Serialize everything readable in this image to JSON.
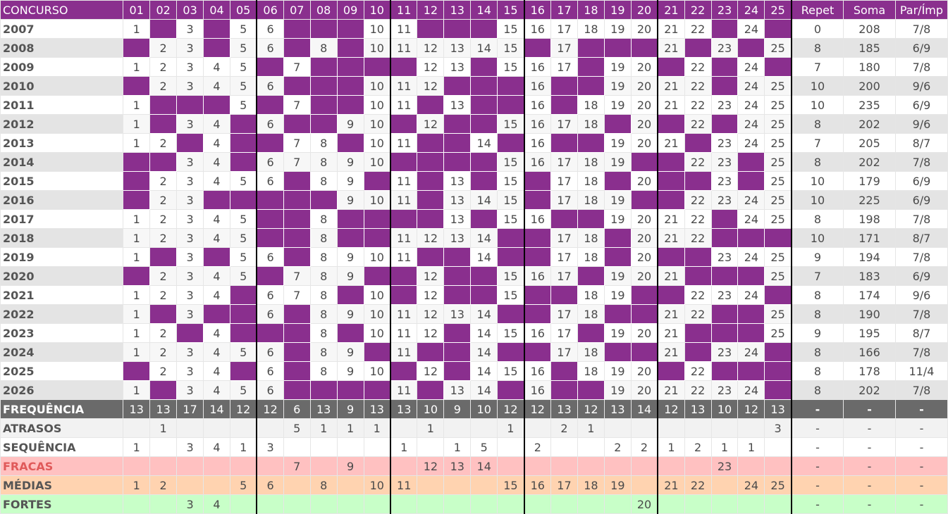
{
  "colors": {
    "header": "#8a2f8e",
    "cell_off": "#8a2f8e",
    "freq_bg": "#6a6a6a",
    "fracas_bg": "#ffc1c1",
    "medias_bg": "#ffd3b0",
    "fortes_bg": "#c8ffc8"
  },
  "header": {
    "concurso": "CONCURSO",
    "numbers": [
      "01",
      "02",
      "03",
      "04",
      "05",
      "06",
      "07",
      "08",
      "09",
      "10",
      "11",
      "12",
      "13",
      "14",
      "15",
      "16",
      "17",
      "18",
      "19",
      "20",
      "21",
      "22",
      "23",
      "24",
      "25"
    ],
    "repet": "Repet",
    "soma": "Soma",
    "parimp": "Par/Ímp"
  },
  "rows": [
    {
      "concurso": "2007",
      "cells": [
        "1",
        "",
        "3",
        "",
        "5",
        "6",
        "",
        "",
        "",
        "10",
        "11",
        "",
        "",
        "",
        "15",
        "16",
        "17",
        "18",
        "19",
        "20",
        "21",
        "22",
        "",
        "24",
        ""
      ],
      "repet": "0",
      "soma": "208",
      "parimp": "7/8"
    },
    {
      "concurso": "2008",
      "cells": [
        "",
        "2",
        "3",
        "",
        "5",
        "6",
        "",
        "8",
        "",
        "10",
        "11",
        "12",
        "13",
        "14",
        "15",
        "",
        "17",
        "",
        "",
        "",
        "21",
        "",
        "23",
        "",
        "25"
      ],
      "repet": "8",
      "soma": "185",
      "parimp": "6/9"
    },
    {
      "concurso": "2009",
      "cells": [
        "1",
        "2",
        "3",
        "4",
        "5",
        "",
        "7",
        "",
        "",
        "",
        "",
        "12",
        "13",
        "",
        "15",
        "16",
        "17",
        "",
        "19",
        "20",
        "",
        "22",
        "",
        "24",
        ""
      ],
      "repet": "7",
      "soma": "180",
      "parimp": "7/8"
    },
    {
      "concurso": "2010",
      "cells": [
        "",
        "2",
        "3",
        "4",
        "5",
        "6",
        "",
        "",
        "",
        "10",
        "11",
        "12",
        "",
        "",
        "",
        "16",
        "",
        "",
        "19",
        "20",
        "21",
        "22",
        "",
        "24",
        "25"
      ],
      "repet": "10",
      "soma": "200",
      "parimp": "9/6"
    },
    {
      "concurso": "2011",
      "cells": [
        "1",
        "",
        "",
        "",
        "5",
        "",
        "7",
        "",
        "",
        "10",
        "11",
        "",
        "13",
        "",
        "",
        "16",
        "",
        "18",
        "19",
        "20",
        "21",
        "22",
        "23",
        "24",
        "25"
      ],
      "repet": "10",
      "soma": "235",
      "parimp": "6/9"
    },
    {
      "concurso": "2012",
      "cells": [
        "1",
        "",
        "3",
        "4",
        "",
        "6",
        "",
        "",
        "9",
        "10",
        "",
        "12",
        "",
        "",
        "15",
        "16",
        "17",
        "18",
        "",
        "20",
        "",
        "22",
        "",
        "24",
        "25"
      ],
      "repet": "8",
      "soma": "202",
      "parimp": "9/6"
    },
    {
      "concurso": "2013",
      "cells": [
        "1",
        "2",
        "",
        "4",
        "",
        "",
        "7",
        "8",
        "",
        "10",
        "11",
        "",
        "",
        "14",
        "",
        "16",
        "",
        "",
        "19",
        "20",
        "21",
        "",
        "23",
        "24",
        "25"
      ],
      "repet": "7",
      "soma": "205",
      "parimp": "8/7"
    },
    {
      "concurso": "2014",
      "cells": [
        "",
        "",
        "3",
        "4",
        "",
        "6",
        "7",
        "8",
        "9",
        "10",
        "",
        "",
        "",
        "",
        "15",
        "16",
        "17",
        "18",
        "19",
        "",
        "",
        "22",
        "23",
        "",
        "25"
      ],
      "repet": "8",
      "soma": "202",
      "parimp": "7/8"
    },
    {
      "concurso": "2015",
      "cells": [
        "",
        "2",
        "3",
        "4",
        "5",
        "6",
        "",
        "8",
        "9",
        "",
        "11",
        "",
        "13",
        "",
        "15",
        "",
        "17",
        "18",
        "",
        "20",
        "",
        "",
        "23",
        "",
        "25"
      ],
      "repet": "10",
      "soma": "179",
      "parimp": "6/9"
    },
    {
      "concurso": "2016",
      "cells": [
        "",
        "2",
        "3",
        "",
        "",
        "",
        "",
        "",
        "9",
        "10",
        "11",
        "",
        "13",
        "14",
        "15",
        "",
        "17",
        "18",
        "19",
        "",
        "",
        "22",
        "23",
        "24",
        "25"
      ],
      "repet": "10",
      "soma": "225",
      "parimp": "6/9"
    },
    {
      "concurso": "2017",
      "cells": [
        "1",
        "2",
        "3",
        "4",
        "5",
        "",
        "",
        "8",
        "",
        "",
        "",
        "",
        "13",
        "",
        "15",
        "16",
        "",
        "",
        "19",
        "20",
        "21",
        "22",
        "",
        "24",
        "25"
      ],
      "repet": "8",
      "soma": "198",
      "parimp": "7/8"
    },
    {
      "concurso": "2018",
      "cells": [
        "1",
        "2",
        "3",
        "4",
        "5",
        "",
        "",
        "8",
        "",
        "",
        "11",
        "12",
        "13",
        "14",
        "",
        "",
        "17",
        "18",
        "",
        "20",
        "21",
        "22",
        "",
        "",
        ""
      ],
      "repet": "10",
      "soma": "171",
      "parimp": "8/7"
    },
    {
      "concurso": "2019",
      "cells": [
        "1",
        "",
        "3",
        "",
        "5",
        "6",
        "",
        "8",
        "9",
        "10",
        "11",
        "",
        "",
        "14",
        "",
        "",
        "17",
        "18",
        "",
        "20",
        "",
        "",
        "23",
        "24",
        "25"
      ],
      "repet": "9",
      "soma": "194",
      "parimp": "7/8"
    },
    {
      "concurso": "2020",
      "cells": [
        "",
        "2",
        "3",
        "4",
        "5",
        "",
        "7",
        "8",
        "9",
        "",
        "",
        "12",
        "",
        "",
        "15",
        "16",
        "17",
        "",
        "19",
        "20",
        "21",
        "",
        "",
        "",
        "25"
      ],
      "repet": "7",
      "soma": "183",
      "parimp": "6/9"
    },
    {
      "concurso": "2021",
      "cells": [
        "1",
        "2",
        "3",
        "4",
        "",
        "6",
        "7",
        "8",
        "",
        "10",
        "",
        "12",
        "",
        "",
        "15",
        "",
        "",
        "18",
        "19",
        "",
        "",
        "22",
        "23",
        "24",
        ""
      ],
      "repet": "8",
      "soma": "174",
      "parimp": "9/6"
    },
    {
      "concurso": "2022",
      "cells": [
        "1",
        "",
        "3",
        "",
        "",
        "6",
        "",
        "8",
        "9",
        "10",
        "11",
        "12",
        "13",
        "14",
        "",
        "",
        "17",
        "18",
        "",
        "",
        "21",
        "22",
        "",
        "",
        "25"
      ],
      "repet": "8",
      "soma": "190",
      "parimp": "7/8"
    },
    {
      "concurso": "2023",
      "cells": [
        "1",
        "2",
        "",
        "4",
        "",
        "",
        "",
        "8",
        "",
        "10",
        "11",
        "12",
        "",
        "14",
        "15",
        "16",
        "17",
        "",
        "19",
        "20",
        "21",
        "",
        "",
        "",
        "25"
      ],
      "repet": "9",
      "soma": "195",
      "parimp": "8/7"
    },
    {
      "concurso": "2024",
      "cells": [
        "1",
        "2",
        "3",
        "4",
        "5",
        "6",
        "",
        "8",
        "9",
        "",
        "11",
        "",
        "",
        "14",
        "",
        "",
        "17",
        "18",
        "",
        "",
        "21",
        "",
        "23",
        "24",
        ""
      ],
      "repet": "8",
      "soma": "166",
      "parimp": "7/8"
    },
    {
      "concurso": "2025",
      "cells": [
        "",
        "2",
        "3",
        "4",
        "",
        "6",
        "",
        "8",
        "9",
        "10",
        "",
        "12",
        "",
        "14",
        "15",
        "16",
        "",
        "18",
        "19",
        "20",
        "",
        "22",
        "",
        "",
        ""
      ],
      "repet": "8",
      "soma": "178",
      "parimp": "11/4"
    },
    {
      "concurso": "2026",
      "cells": [
        "1",
        "",
        "3",
        "4",
        "5",
        "6",
        "",
        "",
        "",
        "",
        "11",
        "",
        "13",
        "14",
        "",
        "16",
        "",
        "",
        "19",
        "20",
        "21",
        "22",
        "23",
        "24",
        ""
      ],
      "repet": "8",
      "soma": "202",
      "parimp": "7/8"
    }
  ],
  "summary": [
    {
      "key": "freq",
      "label": "FREQUÊNCIA",
      "cells": [
        "13",
        "13",
        "17",
        "14",
        "12",
        "12",
        "6",
        "13",
        "9",
        "13",
        "13",
        "10",
        "9",
        "10",
        "12",
        "12",
        "13",
        "12",
        "13",
        "14",
        "12",
        "13",
        "10",
        "12",
        "13"
      ],
      "repet": "-",
      "soma": "-",
      "parimp": "-"
    },
    {
      "key": "atr",
      "label": "ATRASOS",
      "cells": [
        "",
        "1",
        "",
        "",
        "",
        "",
        "5",
        "1",
        "1",
        "1",
        "",
        "1",
        "",
        "",
        "1",
        "",
        "2",
        "1",
        "",
        "",
        "",
        "",
        "",
        "",
        "3"
      ],
      "repet": "-",
      "soma": "-",
      "parimp": "-"
    },
    {
      "key": "seq",
      "label": "SEQUÊNCIA",
      "cells": [
        "1",
        "",
        "3",
        "4",
        "1",
        "3",
        "",
        "",
        "",
        "",
        "1",
        "",
        "1",
        "5",
        "",
        "2",
        "",
        "",
        "2",
        "2",
        "1",
        "2",
        "1",
        "1",
        ""
      ],
      "repet": "-",
      "soma": "-",
      "parimp": "-"
    },
    {
      "key": "fra",
      "label": "FRACAS",
      "cells": [
        "",
        "",
        "",
        "",
        "",
        "",
        "7",
        "",
        "9",
        "",
        "",
        "12",
        "13",
        "14",
        "",
        "",
        "",
        "",
        "",
        "",
        "",
        "",
        "23",
        "",
        ""
      ],
      "repet": "-",
      "soma": "-",
      "parimp": "-"
    },
    {
      "key": "med",
      "label": "MÉDIAS",
      "cells": [
        "1",
        "2",
        "",
        "",
        "5",
        "6",
        "",
        "8",
        "",
        "10",
        "11",
        "",
        "",
        "",
        "15",
        "16",
        "17",
        "18",
        "19",
        "",
        "21",
        "22",
        "",
        "24",
        "25"
      ],
      "repet": "-",
      "soma": "-",
      "parimp": "-"
    },
    {
      "key": "for",
      "label": "FORTES",
      "cells": [
        "",
        "",
        "3",
        "4",
        "",
        "",
        "",
        "",
        "",
        "",
        "",
        "",
        "",
        "",
        "",
        "",
        "",
        "",
        "",
        "20",
        "",
        "",
        "",
        "",
        ""
      ],
      "repet": "-",
      "soma": "-",
      "parimp": "-"
    }
  ]
}
